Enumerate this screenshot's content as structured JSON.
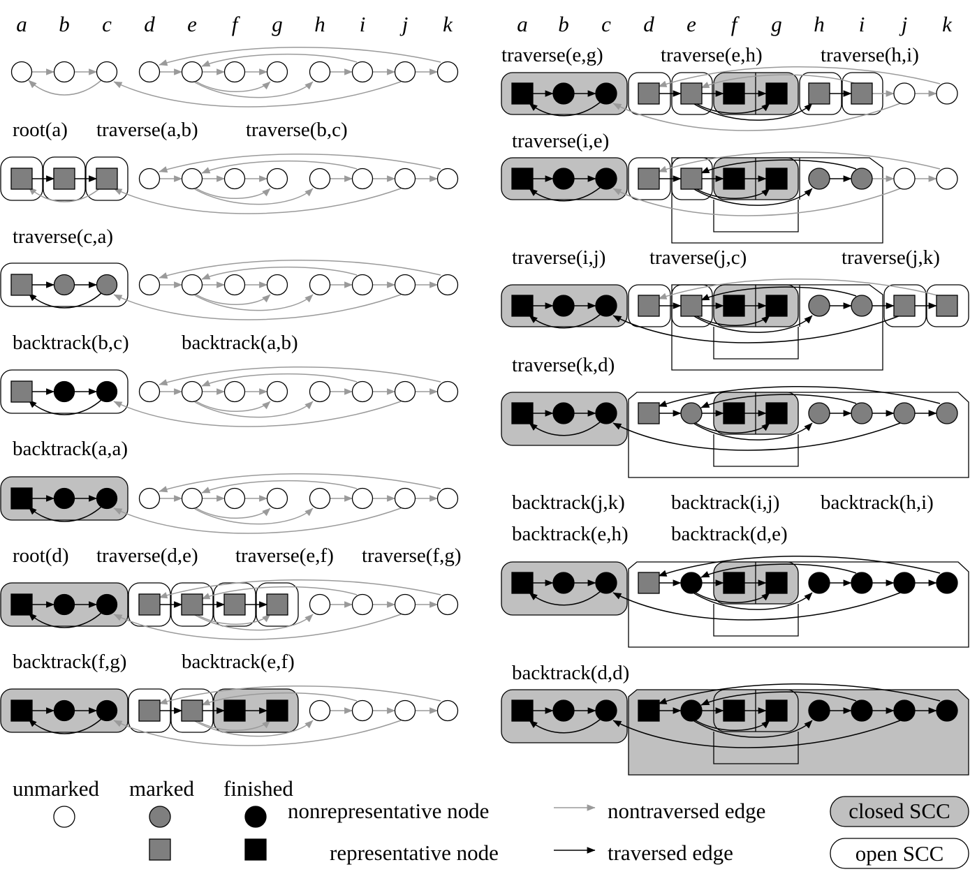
{
  "columns": [
    "a",
    "b",
    "c",
    "d",
    "e",
    "f",
    "g",
    "h",
    "i",
    "j",
    "k"
  ],
  "colors": {
    "unmarked": "#ffffff",
    "marked": "#7f7f7f",
    "finished": "#000000",
    "nontraversed_edge": "#9a9a9a",
    "traversed_edge": "#000000",
    "closed_scc": "#c0c0c0",
    "open_scc": "#ffffff"
  },
  "left_panels": [
    {
      "captions": [],
      "nodes": [
        "u",
        "u",
        "u",
        "u",
        "u",
        "u",
        "u",
        "u",
        "u",
        "u",
        "u"
      ],
      "traversed": []
    },
    {
      "captions": [
        "root(a)",
        "traverse(a,b)",
        "traverse(b,c)"
      ],
      "nodes": [
        "ms",
        "ms",
        "ms",
        "u",
        "u",
        "u",
        "u",
        "u",
        "u",
        "u",
        "u"
      ],
      "traversed": [
        "ab",
        "bc"
      ]
    },
    {
      "captions": [
        "traverse(c,a)"
      ],
      "nodes": [
        "ms",
        "m",
        "m",
        "u",
        "u",
        "u",
        "u",
        "u",
        "u",
        "u",
        "u"
      ],
      "traversed": [
        "ab",
        "bc",
        "ca"
      ]
    },
    {
      "captions": [
        "backtrack(b,c)",
        "backtrack(a,b)"
      ],
      "nodes": [
        "ms",
        "f",
        "f",
        "u",
        "u",
        "u",
        "u",
        "u",
        "u",
        "u",
        "u"
      ],
      "traversed": [
        "ab",
        "bc",
        "ca"
      ]
    },
    {
      "captions": [
        "backtrack(a,a)"
      ],
      "nodes": [
        "fs",
        "f",
        "f",
        "u",
        "u",
        "u",
        "u",
        "u",
        "u",
        "u",
        "u"
      ],
      "traversed": [
        "ab",
        "bc",
        "ca"
      ]
    },
    {
      "captions": [
        "root(d)",
        "traverse(d,e)",
        "traverse(e,f)",
        "traverse(f,g)"
      ],
      "nodes": [
        "fs",
        "f",
        "f",
        "ms",
        "ms",
        "ms",
        "ms",
        "u",
        "u",
        "u",
        "u"
      ],
      "traversed": [
        "ab",
        "bc",
        "ca",
        "de",
        "ef",
        "fg"
      ]
    },
    {
      "captions": [
        "backtrack(f,g)",
        "backtrack(e,f)"
      ],
      "nodes": [
        "fs",
        "f",
        "f",
        "ms",
        "ms",
        "fs",
        "fs",
        "u",
        "u",
        "u",
        "u"
      ],
      "traversed": [
        "ab",
        "bc",
        "ca",
        "de",
        "ef",
        "fg"
      ]
    }
  ],
  "right_panels": [
    {
      "captions": [
        "traverse(e,g)",
        "traverse(e,h)",
        "traverse(h,i)"
      ],
      "nodes": [
        "fs",
        "f",
        "f",
        "ms",
        "ms",
        "fs",
        "fs",
        "ms",
        "ms",
        "u",
        "u"
      ]
    },
    {
      "captions": [
        "traverse(i,e)"
      ],
      "nodes": [
        "fs",
        "f",
        "f",
        "ms",
        "ms",
        "fs",
        "fs",
        "m",
        "m",
        "u",
        "u"
      ]
    },
    {
      "captions": [
        "traverse(i,j)",
        "traverse(j,c)",
        "traverse(j,k)"
      ],
      "nodes": [
        "fs",
        "f",
        "f",
        "ms",
        "ms",
        "fs",
        "fs",
        "m",
        "m",
        "ms",
        "ms"
      ]
    },
    {
      "captions": [
        "traverse(k,d)"
      ],
      "nodes": [
        "fs",
        "f",
        "f",
        "ms",
        "m",
        "fs",
        "fs",
        "m",
        "m",
        "m",
        "m"
      ]
    },
    {
      "captions": [
        "backtrack(j,k)",
        "backtrack(i,j)",
        "backtrack(h,i)",
        "backtrack(e,h)",
        "backtrack(d,e)"
      ],
      "nodes": [
        "fs",
        "f",
        "f",
        "ms",
        "f",
        "fs",
        "fs",
        "f",
        "f",
        "f",
        "f"
      ]
    },
    {
      "captions": [
        "backtrack(d,d)"
      ],
      "nodes": [
        "fs",
        "f",
        "f",
        "fs",
        "f",
        "fs",
        "fs",
        "f",
        "f",
        "f",
        "f"
      ]
    }
  ],
  "legend": {
    "unmarked": "unmarked",
    "marked": "marked",
    "finished": "finished",
    "nonrep_node": "nonrepresentative node",
    "rep_node": "representative node",
    "nontraversed_edge": "nontraversed edge",
    "traversed_edge": "traversed edge",
    "closed_scc": "closed SCC",
    "open_scc": "open SCC"
  }
}
